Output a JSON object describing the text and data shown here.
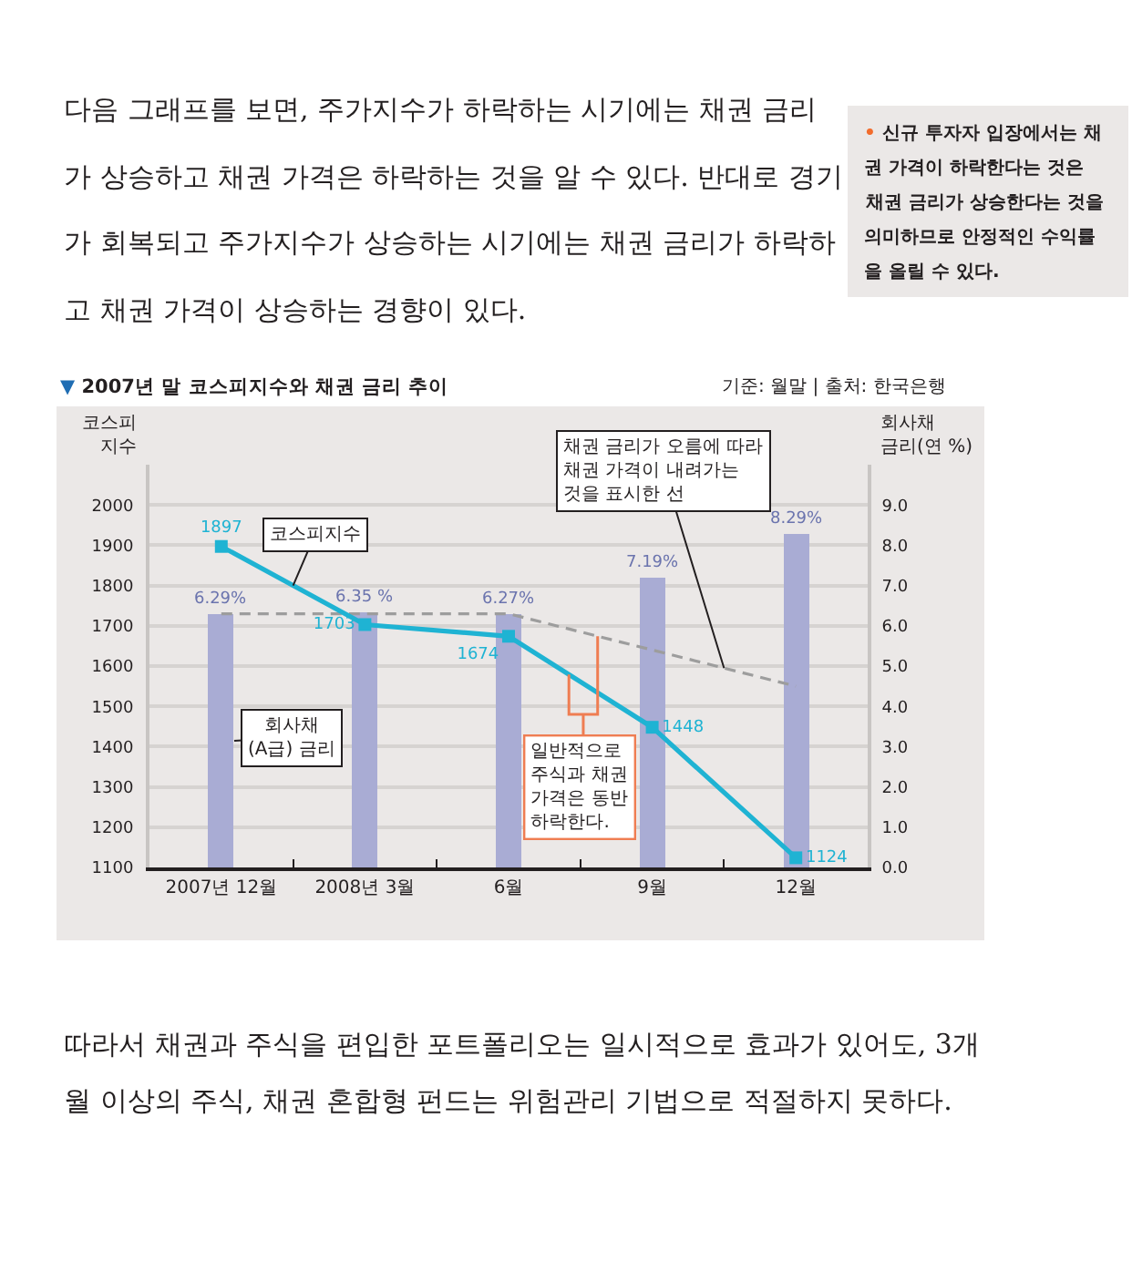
{
  "chart_data": {
    "type": "bar",
    "title": "▼ 2007년 말 코스피지수와 채권 금리 추이",
    "ylabel": "코스피\n지수",
    "y2label": "회사채\n금리(연 %)",
    "categories": [
      "2007년 12월",
      "2008년 3월",
      "6월",
      "9월",
      "12월"
    ],
    "series": [
      {
        "name": "회사채\n(A급) 금리",
        "axis": "y2",
        "color": "#a9acd4",
        "values": [
          6.29,
          6.35,
          6.27,
          7.19,
          8.29
        ],
        "value_labels": [
          "6.29%",
          "6.35 %",
          "6.27%",
          "7.19%",
          "8.29%"
        ]
      },
      {
        "name": "코스피지수",
        "type": "line",
        "axis": "y",
        "color": "#1fb3d3",
        "marker": "square",
        "values": [
          1897,
          1703,
          1674,
          1448,
          1124
        ],
        "value_labels": [
          "1897",
          "1703",
          "1674",
          "1448",
          "1124"
        ]
      },
      {
        "name": "채권 금리가 오름에 따라\n채권 가격이 내려가는\n것을 표시한 선",
        "type": "line",
        "axis": "y2",
        "color": "#9d9d9d",
        "line_style": "dashed",
        "values": [
          6.3,
          6.3,
          6.3,
          5.4,
          4.5
        ]
      }
    ],
    "ylim": [
      1100,
      2100
    ],
    "yticks": [
      1100,
      1200,
      1300,
      1400,
      1500,
      1600,
      1700,
      1800,
      1900,
      2000
    ],
    "y2lim": [
      0,
      10
    ],
    "y2ticks": [
      {
        "value": 0,
        "label": "0.0"
      },
      {
        "value": 1,
        "label": "1.0"
      },
      {
        "value": 2,
        "label": "2.0"
      },
      {
        "value": 3,
        "label": "3.0"
      },
      {
        "value": 4,
        "label": "4.0"
      },
      {
        "value": 5,
        "label": "5.0"
      },
      {
        "value": 6,
        "label": "6.0"
      },
      {
        "value": 7,
        "label": "7.0"
      },
      {
        "value": 8,
        "label": "8.0"
      },
      {
        "value": 9,
        "label": "9.0"
      }
    ],
    "grid": "y",
    "annotations": [
      "다음 그래프를 보면, 주가지수가 하락하는 시기에는 채권 금리\n가 상승하고 채권 가격은 하락하는 것을 알 수 있다. 반대로 경기\n가 회복되고 주가지수가 상승하는 시기에는 채권 금리가 하락하\n고 채권 가격이 상승하는 경향이 있다.",
      "• 신규 투자자 입장에서는 채\n권 가격이 하락한다는 것은\n채권 금리가 상승한다는 것을\n의미하므로 안정적인 수익률\n을 올릴 수 있다.",
      "기준: 월말 | 출처: 한국은행",
      "일반적으로 주식과 채권 가격은 동반 하락한다.",
      "따라서 채권과 주식을 편입한 포트폴리오는 일시적으로 효과가 있어도, 3개\n월 이상의 주식, 채권 혼합형 펀드는 위험관리 기법으로 적절하지 못하다."
    ]
  }
}
